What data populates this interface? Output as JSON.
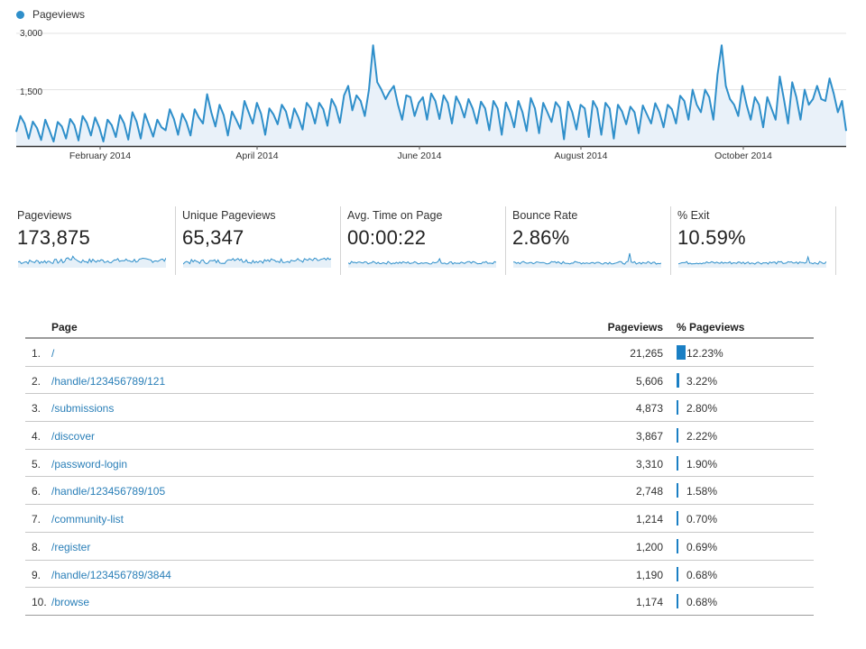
{
  "legend": {
    "label": "Pageviews",
    "color": "#2f8fca"
  },
  "chart_data": {
    "type": "area",
    "series": [
      {
        "name": "Pageviews"
      }
    ],
    "ylim": [
      0,
      3000
    ],
    "yticks": [
      {
        "value": 1500,
        "label": "1,500"
      },
      {
        "value": 3000,
        "label": "3,000"
      }
    ],
    "xticks": [
      {
        "label": "February 2014"
      },
      {
        "label": "April 2014"
      },
      {
        "label": "June 2014"
      },
      {
        "label": "August 2014"
      },
      {
        "label": "October 2014"
      }
    ],
    "values": [
      380,
      800,
      600,
      200,
      650,
      480,
      160,
      700,
      420,
      120,
      640,
      520,
      200,
      720,
      560,
      150,
      800,
      620,
      280,
      760,
      500,
      120,
      700,
      560,
      240,
      820,
      600,
      170,
      900,
      650,
      200,
      860,
      560,
      250,
      700,
      500,
      420,
      980,
      720,
      300,
      860,
      640,
      280,
      980,
      760,
      600,
      1380,
      900,
      520,
      1100,
      820,
      280,
      920,
      700,
      460,
      1200,
      900,
      600,
      1150,
      860,
      300,
      1000,
      840,
      580,
      1100,
      920,
      480,
      1000,
      760,
      440,
      1150,
      1000,
      600,
      1150,
      980,
      540,
      1250,
      1040,
      620,
      1350,
      1600,
      950,
      1350,
      1200,
      800,
      1500,
      2680,
      1700,
      1500,
      1250,
      1450,
      1600,
      1100,
      700,
      1350,
      1300,
      800,
      1150,
      1300,
      700,
      1400,
      1200,
      720,
      1350,
      1150,
      600,
      1320,
      1100,
      760,
      1250,
      1000,
      600,
      1180,
      1000,
      420,
      1200,
      1000,
      300,
      1160,
      900,
      500,
      1200,
      900,
      400,
      1280,
      1000,
      340,
      1150,
      900,
      640,
      1170,
      1020,
      180,
      1180,
      900,
      440,
      1100,
      1000,
      240,
      1200,
      1000,
      300,
      1150,
      1000,
      200,
      1100,
      920,
      580,
      1050,
      900,
      340,
      1080,
      840,
      600,
      1140,
      900,
      500,
      1100,
      980,
      600,
      1340,
      1200,
      700,
      1500,
      1100,
      900,
      1500,
      1300,
      700,
      1900,
      2680,
      1600,
      1250,
      1100,
      800,
      1600,
      1100,
      700,
      1300,
      1100,
      500,
      1300,
      1000,
      700,
      1850,
      1250,
      600,
      1700,
      1300,
      700,
      1500,
      1100,
      1250,
      1600,
      1250,
      1200,
      1800,
      1400,
      900,
      1200,
      400
    ]
  },
  "metrics": [
    {
      "label": "Pageviews",
      "value": "173,875"
    },
    {
      "label": "Unique Pageviews",
      "value": "65,347"
    },
    {
      "label": "Avg. Time on Page",
      "value": "00:00:22"
    },
    {
      "label": "Bounce Rate",
      "value": "2.86%"
    },
    {
      "label": "% Exit",
      "value": "10.59%"
    }
  ],
  "table": {
    "headers": {
      "page": "Page",
      "pageviews": "Pageviews",
      "pct": "% Pageviews"
    },
    "rows": [
      {
        "num": "1.",
        "page": "/",
        "pageviews": "21,265",
        "pct": "12.23%",
        "pct_value": 12.23
      },
      {
        "num": "2.",
        "page": "/handle/123456789/121",
        "pageviews": "5,606",
        "pct": "3.22%",
        "pct_value": 3.22
      },
      {
        "num": "3.",
        "page": "/submissions",
        "pageviews": "4,873",
        "pct": "2.80%",
        "pct_value": 2.8
      },
      {
        "num": "4.",
        "page": "/discover",
        "pageviews": "3,867",
        "pct": "2.22%",
        "pct_value": 2.22
      },
      {
        "num": "5.",
        "page": "/password-login",
        "pageviews": "3,310",
        "pct": "1.90%",
        "pct_value": 1.9
      },
      {
        "num": "6.",
        "page": "/handle/123456789/105",
        "pageviews": "2,748",
        "pct": "1.58%",
        "pct_value": 1.58
      },
      {
        "num": "7.",
        "page": "/community-list",
        "pageviews": "1,214",
        "pct": "0.70%",
        "pct_value": 0.7
      },
      {
        "num": "8.",
        "page": "/register",
        "pageviews": "1,200",
        "pct": "0.69%",
        "pct_value": 0.69
      },
      {
        "num": "9.",
        "page": "/handle/123456789/3844",
        "pageviews": "1,190",
        "pct": "0.68%",
        "pct_value": 0.68
      },
      {
        "num": "10.",
        "page": "/browse",
        "pageviews": "1,174",
        "pct": "0.68%",
        "pct_value": 0.68
      }
    ]
  }
}
